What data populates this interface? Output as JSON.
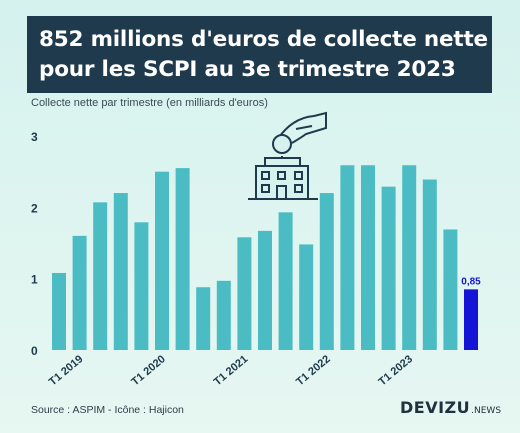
{
  "header": {
    "title_line1": "852 millions d'euros de collecte nette",
    "title_line2": "pour les SCPI au 3e trimestre 2023"
  },
  "chart_data": {
    "type": "bar",
    "subtitle": "Collecte nette par trimestre (en milliards d'euros)",
    "ylim": [
      0,
      3
    ],
    "yticks": [
      "0",
      "1",
      "2",
      "3"
    ],
    "grid": false,
    "xlabels": [
      "T1 2019",
      "T1 2020",
      "T1 2021",
      "T1 2022",
      "T1 2023"
    ],
    "xlabel_positions": [
      1,
      5,
      9,
      13,
      17
    ],
    "values": [
      1.08,
      1.6,
      2.07,
      2.2,
      1.79,
      2.5,
      2.55,
      0.88,
      0.97,
      1.58,
      1.67,
      1.93,
      1.48,
      2.2,
      2.59,
      2.59,
      2.29,
      2.59,
      2.39,
      1.69,
      0.85
    ],
    "highlight_index": 20,
    "highlight_label": "0,85",
    "bar_color": "#4bbcc3",
    "highlight_color": "#1414d6"
  },
  "footer": {
    "source": "Source : ASPIM - Icône : Hajicon",
    "brand_main": "DEVIZU",
    "brand_sub": ".NEWS"
  }
}
